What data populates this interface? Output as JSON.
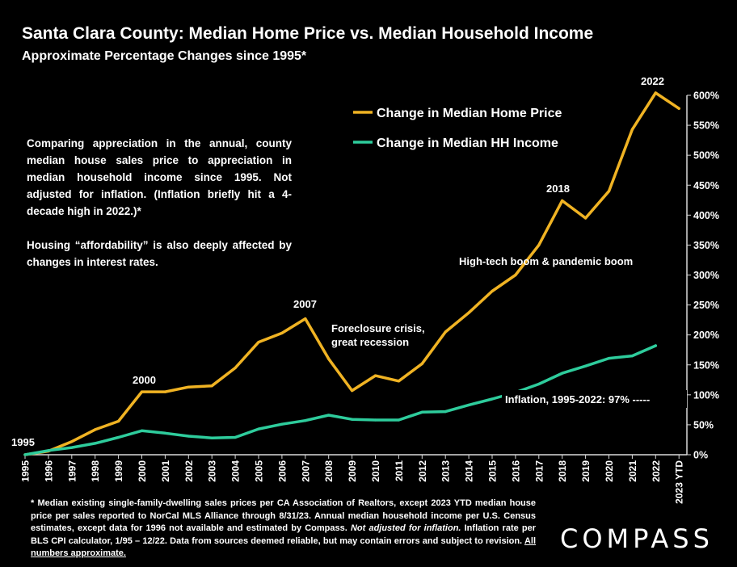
{
  "header": {
    "title": "Santa Clara County: Median Home Price vs. Median Household Income",
    "subtitle": "Approximate Percentage Changes since 1995*"
  },
  "note": {
    "p1": "Comparing appreciation in the annual, county median house sales price to appreciation in median household income since 1995. Not adjusted for inflation. (Inflation briefly hit a 4-decade high in 2022.)*",
    "p2": "Housing “affordability” is also deeply affected by changes in interest rates."
  },
  "footnote": {
    "part1": "* Median existing single-family-dwelling sales prices per CA Association of Realtors, except 2023 YTD median house price per sales reported to NorCal MLS Alliance through 8/31/23. Annual median household income per U.S. Census estimates, except data for 1996 not available and estimated by Compass.",
    "italic": "Not adjusted for inflation.",
    "part2": "Inflation rate per BLS CPI calculator, 1/95 – 12/22. Data from sources deemed reliable, but may contain errors and subject to revision.",
    "underlined": "All numbers approximate."
  },
  "logo": {
    "text": "COMPASS"
  },
  "chart_data": {
    "type": "line",
    "x": [
      "1995",
      "1996",
      "1997",
      "1998",
      "1999",
      "2000",
      "2001",
      "2002",
      "2003",
      "2004",
      "2005",
      "2006",
      "2007",
      "2008",
      "2009",
      "2010",
      "2011",
      "2012",
      "2013",
      "2014",
      "2015",
      "2016",
      "2017",
      "2018",
      "2019",
      "2020",
      "2021",
      "2022",
      "2023 YTD"
    ],
    "ylim": [
      0,
      600
    ],
    "y_ticks": [
      "0%",
      "50%",
      "100%",
      "150%",
      "200%",
      "250%",
      "300%",
      "350%",
      "400%",
      "450%",
      "500%",
      "550%",
      "600%"
    ],
    "y_axis_position": "right",
    "grid": false,
    "legend_placement": "top-right",
    "series": [
      {
        "name": "Change in Median Home Price",
        "color": "#f0b323",
        "values": [
          0,
          6,
          22,
          42,
          56,
          105,
          105,
          113,
          115,
          145,
          188,
          203,
          227,
          160,
          107,
          132,
          123,
          152,
          205,
          237,
          273,
          300,
          350,
          424,
          395,
          440,
          543,
          604,
          578
        ]
      },
      {
        "name": "Change in Median HH Income",
        "color": "#2ecc9c",
        "values": [
          0,
          7,
          12,
          19,
          29,
          40,
          36,
          31,
          28,
          29,
          43,
          51,
          57,
          66,
          59,
          58,
          58,
          71,
          72,
          83,
          93,
          104,
          118,
          136,
          148,
          161,
          165,
          182,
          null
        ]
      }
    ],
    "annotations": {
      "a1995": "1995",
      "a2000": "2000",
      "a2007": "2007",
      "a2018": "2018",
      "a2022": "2022",
      "foreclosure1": "Foreclosure crisis,",
      "foreclosure2": "great recession",
      "boom": "High-tech boom & pandemic boom",
      "inflation": "Inflation, 1995-2022:  97% -----"
    },
    "inflation_level": 97
  }
}
